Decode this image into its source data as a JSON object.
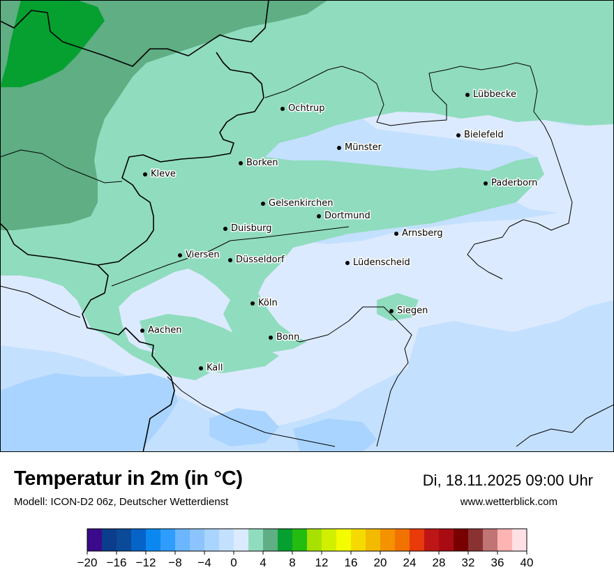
{
  "header": {
    "title": "Temperatur in 2m (in °C)",
    "model": "Modell: ICON-D2 06z, Deutscher Wetterdienst",
    "datetime": "Di, 18.11.2025 09:00 Uhr",
    "website": "www.wetterblick.com"
  },
  "legend": {
    "min": -20,
    "max": 40,
    "step": 2,
    "tick_labels": [
      "−20",
      "−16",
      "−12",
      "−8",
      "−4",
      "0",
      "4",
      "8",
      "12",
      "16",
      "20",
      "24",
      "28",
      "32",
      "36",
      "40"
    ],
    "colors": [
      "#3a0a8a",
      "#0c3c8c",
      "#0a4a98",
      "#0663c8",
      "#0a88f0",
      "#2f9cff",
      "#6ab6ff",
      "#8cc4ff",
      "#a9d4ff",
      "#c4e0ff",
      "#dceaff",
      "#90dcbe",
      "#5fae84",
      "#06a030",
      "#23bc10",
      "#a8e000",
      "#d0f000",
      "#f4fc00",
      "#f4da00",
      "#f2ba00",
      "#f49200",
      "#f27200",
      "#e83a0a",
      "#be1616",
      "#a80c12",
      "#780000",
      "#8a3232",
      "#c07474",
      "#ffb4b4",
      "#ffe0e4"
    ]
  },
  "map": {
    "palette": {
      "dark_green": "#06a030",
      "mid_green": "#5fae84",
      "light_green": "#90dcbe",
      "very_light_blue": "#dceaff",
      "light_blue": "#c4e0ff",
      "blue": "#a9d4ff"
    },
    "cities": [
      {
        "name": "Lübbecke"
      },
      {
        "name": "Ochtrup"
      },
      {
        "name": "Bielefeld"
      },
      {
        "name": "Münster"
      },
      {
        "name": "Borken"
      },
      {
        "name": "Kleve"
      },
      {
        "name": "Paderborn"
      },
      {
        "name": "Gelsenkirchen"
      },
      {
        "name": "Dortmund"
      },
      {
        "name": "Duisburg"
      },
      {
        "name": "Arnsberg"
      },
      {
        "name": "Viersen"
      },
      {
        "name": "Düsseldorf"
      },
      {
        "name": "Lüdenscheid"
      },
      {
        "name": "Köln"
      },
      {
        "name": "Siegen"
      },
      {
        "name": "Aachen"
      },
      {
        "name": "Bonn"
      },
      {
        "name": "Kall"
      }
    ]
  }
}
